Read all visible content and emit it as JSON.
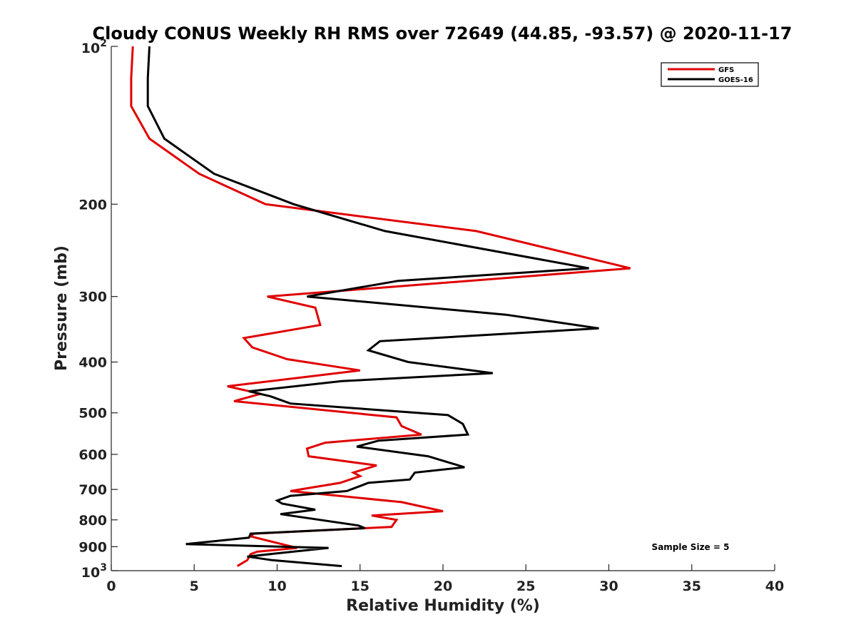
{
  "chart_data": {
    "type": "line",
    "title": "Cloudy CONUS Weekly RH RMS over 72649 (44.85, -93.57) @ 2020-11-17",
    "xlabel": "Relative Humidity (%)",
    "ylabel": "Pressure (mb)",
    "xlim": [
      0,
      40
    ],
    "ylim": [
      100,
      1000
    ],
    "y_scale": "log",
    "y_reversed": true,
    "x_ticks": [
      "0",
      "5",
      "10",
      "15",
      "20",
      "25",
      "30",
      "35",
      "40"
    ],
    "y_ticks": [
      {
        "value": 100,
        "base": "10",
        "exp": "2"
      },
      {
        "value": 200,
        "label": "200"
      },
      {
        "value": 300,
        "label": "300"
      },
      {
        "value": 400,
        "label": "400"
      },
      {
        "value": 500,
        "label": "500"
      },
      {
        "value": 600,
        "label": "600"
      },
      {
        "value": 700,
        "label": "700"
      },
      {
        "value": 800,
        "label": "800"
      },
      {
        "value": 900,
        "label": "900"
      },
      {
        "value": 1000,
        "base": "10",
        "exp": "3"
      }
    ],
    "grid": false,
    "legend_position": "top-right",
    "annotation": "Sample Size = 5",
    "series": [
      {
        "name": "GFS",
        "color": "#e00000",
        "points": [
          [
            1.3,
            100
          ],
          [
            1.2,
            115
          ],
          [
            1.2,
            130
          ],
          [
            2.3,
            150
          ],
          [
            5.3,
            175
          ],
          [
            9.3,
            200
          ],
          [
            22.0,
            225
          ],
          [
            31.3,
            265
          ],
          [
            9.4,
            300
          ],
          [
            12.3,
            315
          ],
          [
            12.6,
            340
          ],
          [
            8.0,
            360
          ],
          [
            8.5,
            375
          ],
          [
            10.6,
            395
          ],
          [
            15.0,
            415
          ],
          [
            7.0,
            445
          ],
          [
            9.0,
            460
          ],
          [
            7.4,
            475
          ],
          [
            17.2,
            510
          ],
          [
            17.5,
            530
          ],
          [
            18.7,
            550
          ],
          [
            12.9,
            570
          ],
          [
            11.8,
            585
          ],
          [
            11.9,
            605
          ],
          [
            16.0,
            630
          ],
          [
            14.6,
            650
          ],
          [
            15.0,
            660
          ],
          [
            13.8,
            680
          ],
          [
            10.8,
            705
          ],
          [
            17.5,
            740
          ],
          [
            20.0,
            770
          ],
          [
            15.7,
            785
          ],
          [
            17.2,
            800
          ],
          [
            16.9,
            825
          ],
          [
            8.6,
            850
          ],
          [
            8.4,
            860
          ],
          [
            11.2,
            905
          ],
          [
            8.8,
            920
          ],
          [
            8.4,
            930
          ],
          [
            8.2,
            955
          ],
          [
            7.6,
            980
          ]
        ]
      },
      {
        "name": "GOES-16",
        "color": "#000000",
        "points": [
          [
            2.3,
            100
          ],
          [
            2.2,
            115
          ],
          [
            2.2,
            130
          ],
          [
            3.2,
            150
          ],
          [
            6.2,
            175
          ],
          [
            11.0,
            200
          ],
          [
            16.5,
            225
          ],
          [
            28.8,
            265
          ],
          [
            17.3,
            280
          ],
          [
            11.8,
            300
          ],
          [
            23.8,
            325
          ],
          [
            29.4,
            345
          ],
          [
            16.2,
            365
          ],
          [
            15.5,
            380
          ],
          [
            17.9,
            400
          ],
          [
            23.0,
            420
          ],
          [
            13.9,
            435
          ],
          [
            8.3,
            455
          ],
          [
            9.6,
            465
          ],
          [
            10.8,
            480
          ],
          [
            20.3,
            505
          ],
          [
            21.2,
            525
          ],
          [
            21.5,
            550
          ],
          [
            16.1,
            565
          ],
          [
            14.8,
            580
          ],
          [
            19.1,
            605
          ],
          [
            21.3,
            635
          ],
          [
            18.3,
            650
          ],
          [
            18.0,
            670
          ],
          [
            15.5,
            680
          ],
          [
            14.2,
            705
          ],
          [
            10.8,
            720
          ],
          [
            10.0,
            735
          ],
          [
            10.3,
            745
          ],
          [
            12.3,
            765
          ],
          [
            10.2,
            780
          ],
          [
            14.9,
            820
          ],
          [
            15.3,
            830
          ],
          [
            8.4,
            850
          ],
          [
            8.3,
            865
          ],
          [
            4.5,
            890
          ],
          [
            13.1,
            905
          ],
          [
            8.2,
            940
          ],
          [
            9.7,
            955
          ],
          [
            13.9,
            980
          ]
        ]
      }
    ]
  }
}
